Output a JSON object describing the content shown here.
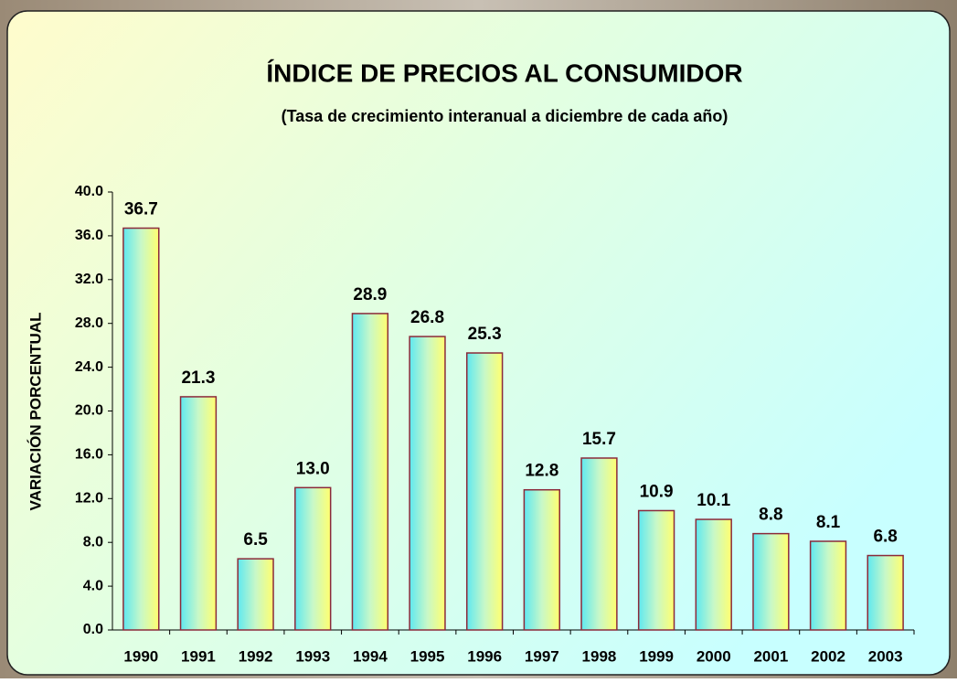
{
  "chart_data": {
    "type": "bar",
    "title": "ÍNDICE DE PRECIOS AL CONSUMIDOR",
    "subtitle": "(Tasa de crecimiento interanual a diciembre de cada año)",
    "y_label": "VARIACIÓN PORCENTUAL",
    "categories": [
      "1990",
      "1991",
      "1992",
      "1993",
      "1994",
      "1995",
      "1996",
      "1997",
      "1998",
      "1999",
      "2000",
      "2001",
      "2002",
      "2003"
    ],
    "values": [
      36.7,
      21.3,
      6.5,
      13.0,
      28.9,
      26.8,
      25.3,
      12.8,
      15.7,
      10.9,
      10.1,
      8.8,
      8.1,
      6.8
    ],
    "value_labels": [
      "36.7",
      "21.3",
      "6.5",
      "13.0",
      "28.9",
      "26.8",
      "25.3",
      "12.8",
      "15.7",
      "10.9",
      "10.1",
      "8.8",
      "8.1",
      "6.8"
    ],
    "ylim": [
      0,
      40
    ],
    "yticks": [
      {
        "value": 0,
        "label": "0.0"
      },
      {
        "value": 4,
        "label": "4.0"
      },
      {
        "value": 8,
        "label": "8.0"
      },
      {
        "value": 12,
        "label": "12.0"
      },
      {
        "value": 16,
        "label": "16.0"
      },
      {
        "value": 20,
        "label": "20.0"
      },
      {
        "value": 24,
        "label": "24.0"
      },
      {
        "value": 28,
        "label": "28.0"
      },
      {
        "value": 32,
        "label": "32.0"
      },
      {
        "value": 36,
        "label": "36.0"
      },
      {
        "value": 40,
        "label": "40.0"
      }
    ],
    "color": "#8b2a3a"
  }
}
